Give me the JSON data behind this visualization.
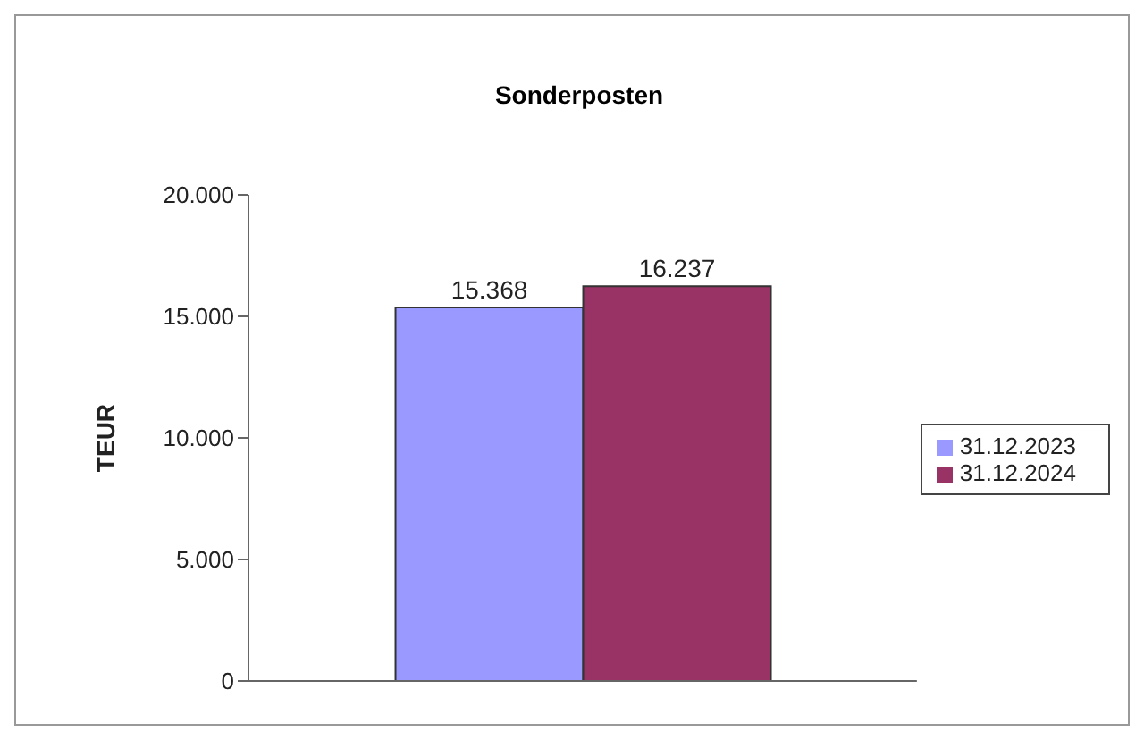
{
  "chart_data": {
    "type": "bar",
    "title": "Sonderposten",
    "ylabel": "TEUR",
    "categories": [
      null
    ],
    "series": [
      {
        "name": "31.12.2023",
        "color": "#9999ff",
        "values": [
          15368
        ],
        "value_labels": [
          "15.368"
        ]
      },
      {
        "name": "31.12.2024",
        "color": "#993366",
        "values": [
          16237
        ],
        "value_labels": [
          "16.237"
        ]
      }
    ],
    "ylim": [
      0,
      20000
    ],
    "yticks": [
      {
        "value": 0,
        "label": "0"
      },
      {
        "value": 5000,
        "label": "5.000"
      },
      {
        "value": 10000,
        "label": "10.000"
      },
      {
        "value": 15000,
        "label": "15.000"
      },
      {
        "value": 20000,
        "label": "20.000"
      }
    ],
    "grid": false,
    "legend": "right"
  }
}
